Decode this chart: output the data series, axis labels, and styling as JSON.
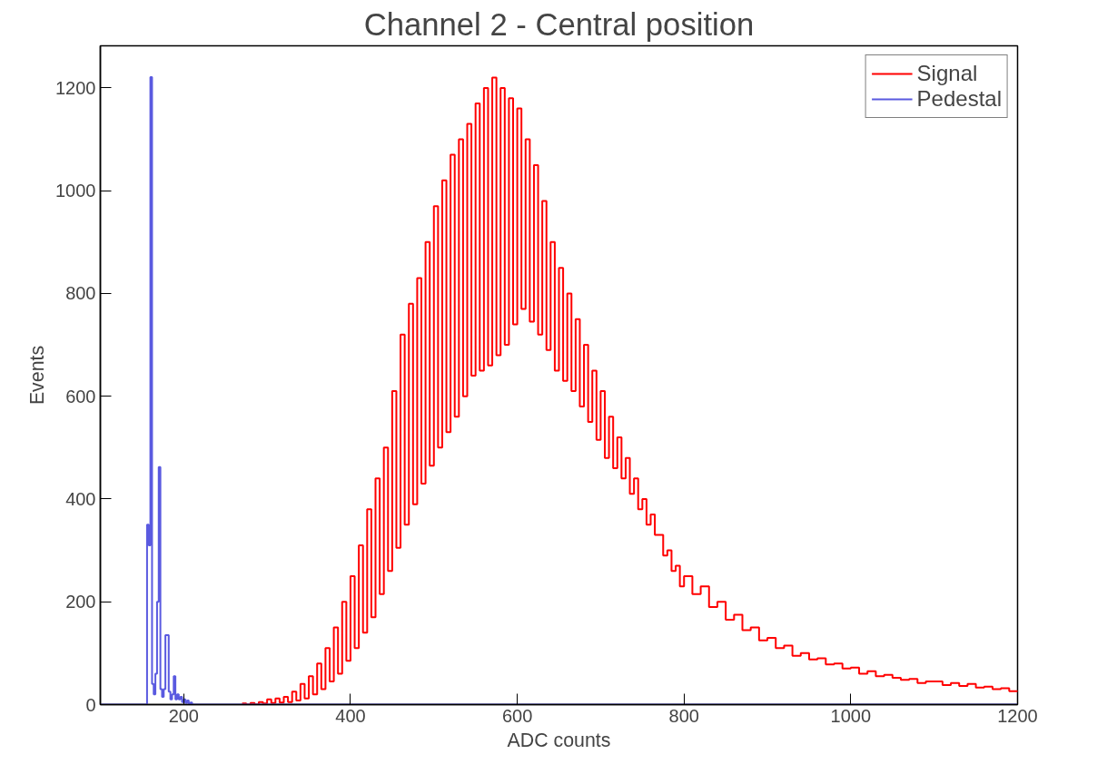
{
  "chart_data": {
    "type": "step",
    "title": "Channel 2 - Central position",
    "xlabel": "ADC counts",
    "ylabel": "Events",
    "xlim": [
      100,
      1200
    ],
    "xticks": [
      200,
      400,
      600,
      800,
      1000,
      1200
    ],
    "ylim": [
      0,
      1282
    ],
    "yticks": [
      0,
      200,
      400,
      600,
      800,
      1000,
      1200
    ],
    "grid": false,
    "legend": "top right",
    "marker": "none",
    "line_style": "solid",
    "series": [
      {
        "name": "Signal",
        "color": "#ff0000",
        "x": [
          270,
          275,
          280,
          285,
          290,
          295,
          300,
          305,
          310,
          315,
          320,
          325,
          330,
          335,
          340,
          345,
          350,
          355,
          360,
          365,
          370,
          375,
          380,
          385,
          390,
          395,
          400,
          405,
          410,
          415,
          420,
          425,
          430,
          435,
          440,
          445,
          450,
          455,
          460,
          465,
          470,
          475,
          480,
          485,
          490,
          495,
          500,
          505,
          510,
          515,
          520,
          525,
          530,
          535,
          540,
          545,
          550,
          555,
          560,
          565,
          570,
          575,
          580,
          585,
          590,
          595,
          600,
          605,
          610,
          615,
          620,
          625,
          630,
          635,
          640,
          645,
          650,
          655,
          660,
          665,
          670,
          675,
          680,
          685,
          690,
          695,
          700,
          705,
          710,
          715,
          720,
          725,
          730,
          735,
          740,
          745,
          750,
          755,
          760,
          765,
          770,
          775,
          780,
          785,
          790,
          795,
          800,
          810,
          820,
          830,
          840,
          850,
          860,
          870,
          880,
          890,
          900,
          910,
          920,
          930,
          940,
          950,
          960,
          970,
          980,
          990,
          1000,
          1010,
          1020,
          1030,
          1040,
          1050,
          1060,
          1070,
          1080,
          1090,
          1100,
          1110,
          1120,
          1130,
          1140,
          1150,
          1160,
          1170,
          1180,
          1190,
          1200
        ],
        "values": [
          2,
          0,
          3,
          0,
          5,
          2,
          10,
          3,
          12,
          4,
          15,
          5,
          25,
          8,
          40,
          12,
          55,
          20,
          80,
          30,
          110,
          45,
          150,
          60,
          200,
          85,
          250,
          110,
          310,
          140,
          380,
          170,
          440,
          215,
          500,
          260,
          610,
          305,
          720,
          350,
          780,
          390,
          830,
          430,
          900,
          465,
          970,
          500,
          1020,
          530,
          1070,
          560,
          1100,
          600,
          1130,
          640,
          1170,
          650,
          1200,
          660,
          1220,
          680,
          1200,
          700,
          1180,
          740,
          1160,
          770,
          1100,
          745,
          1050,
          720,
          980,
          690,
          900,
          650,
          850,
          630,
          800,
          610,
          750,
          580,
          700,
          550,
          650,
          515,
          610,
          480,
          560,
          460,
          520,
          440,
          480,
          410,
          440,
          380,
          400,
          350,
          370,
          330,
          330,
          290,
          300,
          260,
          270,
          230,
          250,
          215,
          230,
          190,
          200,
          165,
          175,
          145,
          150,
          125,
          130,
          110,
          115,
          95,
          100,
          88,
          90,
          78,
          80,
          70,
          72,
          60,
          65,
          55,
          58,
          52,
          48,
          50,
          42,
          45,
          45,
          38,
          42,
          36,
          40,
          33,
          35,
          30,
          32,
          26,
          28
        ]
      },
      {
        "name": "Pedestal",
        "color": "#5a5ae0",
        "x": [
          100,
          156,
          158,
          160,
          162,
          164,
          166,
          168,
          170,
          172,
          174,
          176,
          178,
          180,
          182,
          184,
          186,
          188,
          190,
          192,
          194,
          196,
          198,
          200,
          202,
          204,
          206,
          208,
          210,
          214,
          1200
        ],
        "values": [
          0,
          350,
          310,
          1221,
          40,
          20,
          60,
          200,
          462,
          30,
          15,
          30,
          135,
          135,
          25,
          10,
          20,
          55,
          10,
          20,
          10,
          15,
          5,
          10,
          3,
          8,
          0,
          4,
          0,
          0,
          0
        ]
      }
    ]
  }
}
